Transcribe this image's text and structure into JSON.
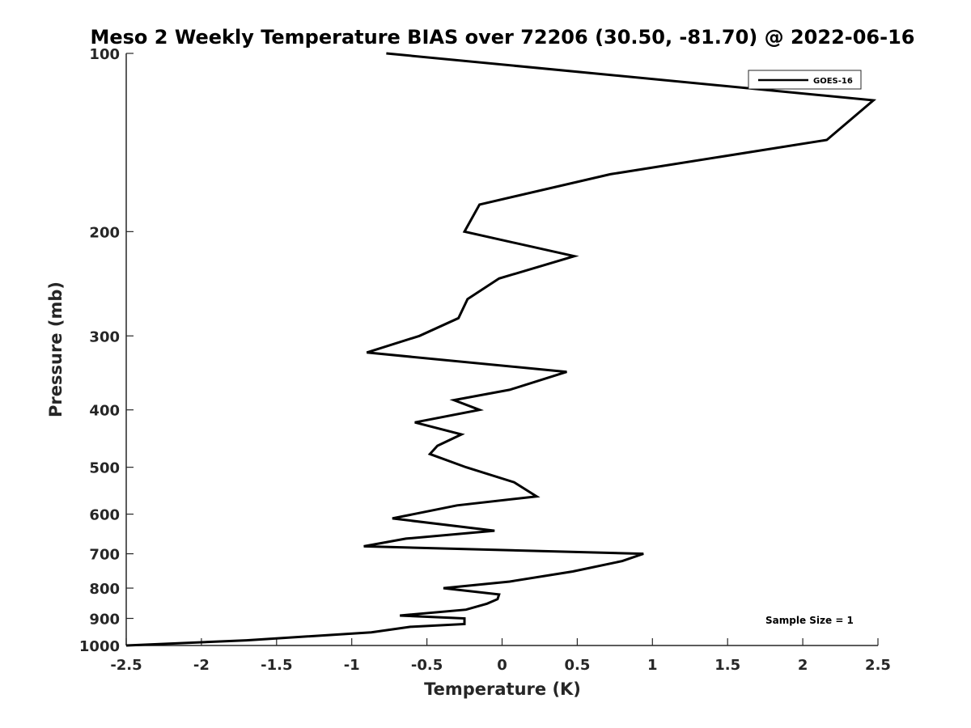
{
  "chart_data": {
    "type": "line",
    "title": "Meso 2 Weekly Temperature BIAS over 72206 (30.50, -81.70) @ 2022-06-16",
    "xlabel": "Temperature (K)",
    "ylabel": "Pressure (mb)",
    "xlim": [
      -2.5,
      2.5
    ],
    "ylim": [
      1000,
      100
    ],
    "y_scale": "log",
    "x_ticks": [
      "-2.5",
      "-2",
      "-1.5",
      "-1",
      "-0.5",
      "0",
      "0.5",
      "1",
      "1.5",
      "2",
      "2.5"
    ],
    "y_ticks": [
      "100",
      "200",
      "300",
      "400",
      "500",
      "600",
      "700",
      "800",
      "900",
      "1000"
    ],
    "grid": false,
    "legend": {
      "position": "top-right",
      "entries": [
        "GOES-16"
      ]
    },
    "annotation": "Sample Size = 1",
    "series": [
      {
        "name": "GOES-16",
        "color": "#000000",
        "points": [
          [
            -0.77,
            100
          ],
          [
            2.47,
            120
          ],
          [
            2.16,
            140
          ],
          [
            0.72,
            160
          ],
          [
            -0.15,
            180
          ],
          [
            -0.25,
            200
          ],
          [
            0.48,
            220
          ],
          [
            -0.02,
            240
          ],
          [
            -0.23,
            260
          ],
          [
            -0.29,
            280
          ],
          [
            -0.55,
            300
          ],
          [
            -0.9,
            320
          ],
          [
            0.43,
            345
          ],
          [
            0.05,
            370
          ],
          [
            -0.32,
            385
          ],
          [
            -0.15,
            400
          ],
          [
            -0.58,
            420
          ],
          [
            -0.27,
            440
          ],
          [
            -0.43,
            460
          ],
          [
            -0.48,
            475
          ],
          [
            -0.24,
            500
          ],
          [
            0.08,
            530
          ],
          [
            0.23,
            560
          ],
          [
            -0.3,
            580
          ],
          [
            -0.73,
            610
          ],
          [
            -0.05,
            640
          ],
          [
            -0.64,
            660
          ],
          [
            -0.92,
            680
          ],
          [
            0.94,
            700
          ],
          [
            0.8,
            720
          ],
          [
            0.47,
            750
          ],
          [
            0.05,
            780
          ],
          [
            -0.39,
            800
          ],
          [
            -0.02,
            820
          ],
          [
            -0.03,
            835
          ],
          [
            -0.1,
            850
          ],
          [
            -0.24,
            870
          ],
          [
            -0.68,
            890
          ],
          [
            -0.25,
            900
          ],
          [
            -0.25,
            920
          ],
          [
            -0.61,
            930
          ],
          [
            -0.87,
            950
          ],
          [
            -1.7,
            980
          ],
          [
            -2.5,
            1000
          ]
        ]
      }
    ]
  }
}
